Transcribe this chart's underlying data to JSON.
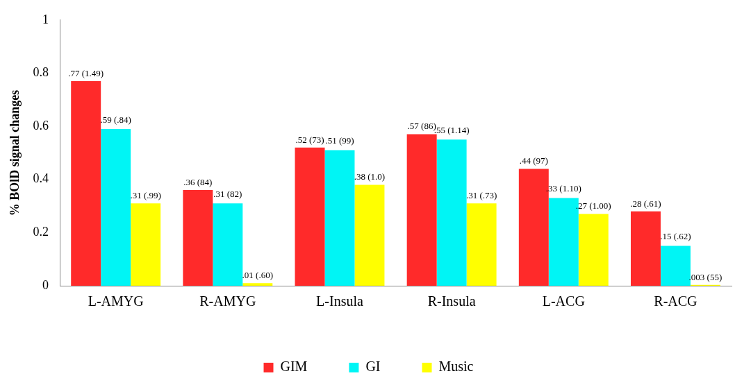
{
  "chart_data": {
    "type": "bar",
    "ylabel": "% BOlD signal changes",
    "categories": [
      "L-AMYG",
      "R-AMYG",
      "L-Insula",
      "R-Insula",
      "L-ACG",
      "R-ACG"
    ],
    "series": [
      {
        "name": "GIM",
        "color": "#ff2a2a",
        "values": [
          0.77,
          0.36,
          0.52,
          0.57,
          0.44,
          0.28
        ],
        "value_labels": [
          ".77 (1.49)",
          ".36 (84)",
          ".52 (73)",
          ".57 (86)",
          ".44 (97)",
          ".28 (.61)"
        ]
      },
      {
        "name": "GI",
        "color": "#00f5f5",
        "values": [
          0.59,
          0.31,
          0.51,
          0.55,
          0.33,
          0.15
        ],
        "value_labels": [
          ".59 (.84)",
          ".31 (82)",
          ".51 (99)",
          ".55 (1.14)",
          ".33 (1.10)",
          ".15 (.62)"
        ]
      },
      {
        "name": "Music",
        "color": "#ffff00",
        "values": [
          0.31,
          0.01,
          0.38,
          0.31,
          0.27,
          0.003
        ],
        "value_labels": [
          ".31 (.99)",
          ".01 (.60)",
          ".38 (1.0)",
          ".31 (.73)",
          ".27 (1.00)",
          ".003 (55)"
        ]
      }
    ],
    "ylim": [
      0,
      1
    ],
    "yticks": [
      0,
      0.2,
      0.4,
      0.6,
      0.8,
      1
    ],
    "grid": false,
    "legend": "bottom"
  }
}
